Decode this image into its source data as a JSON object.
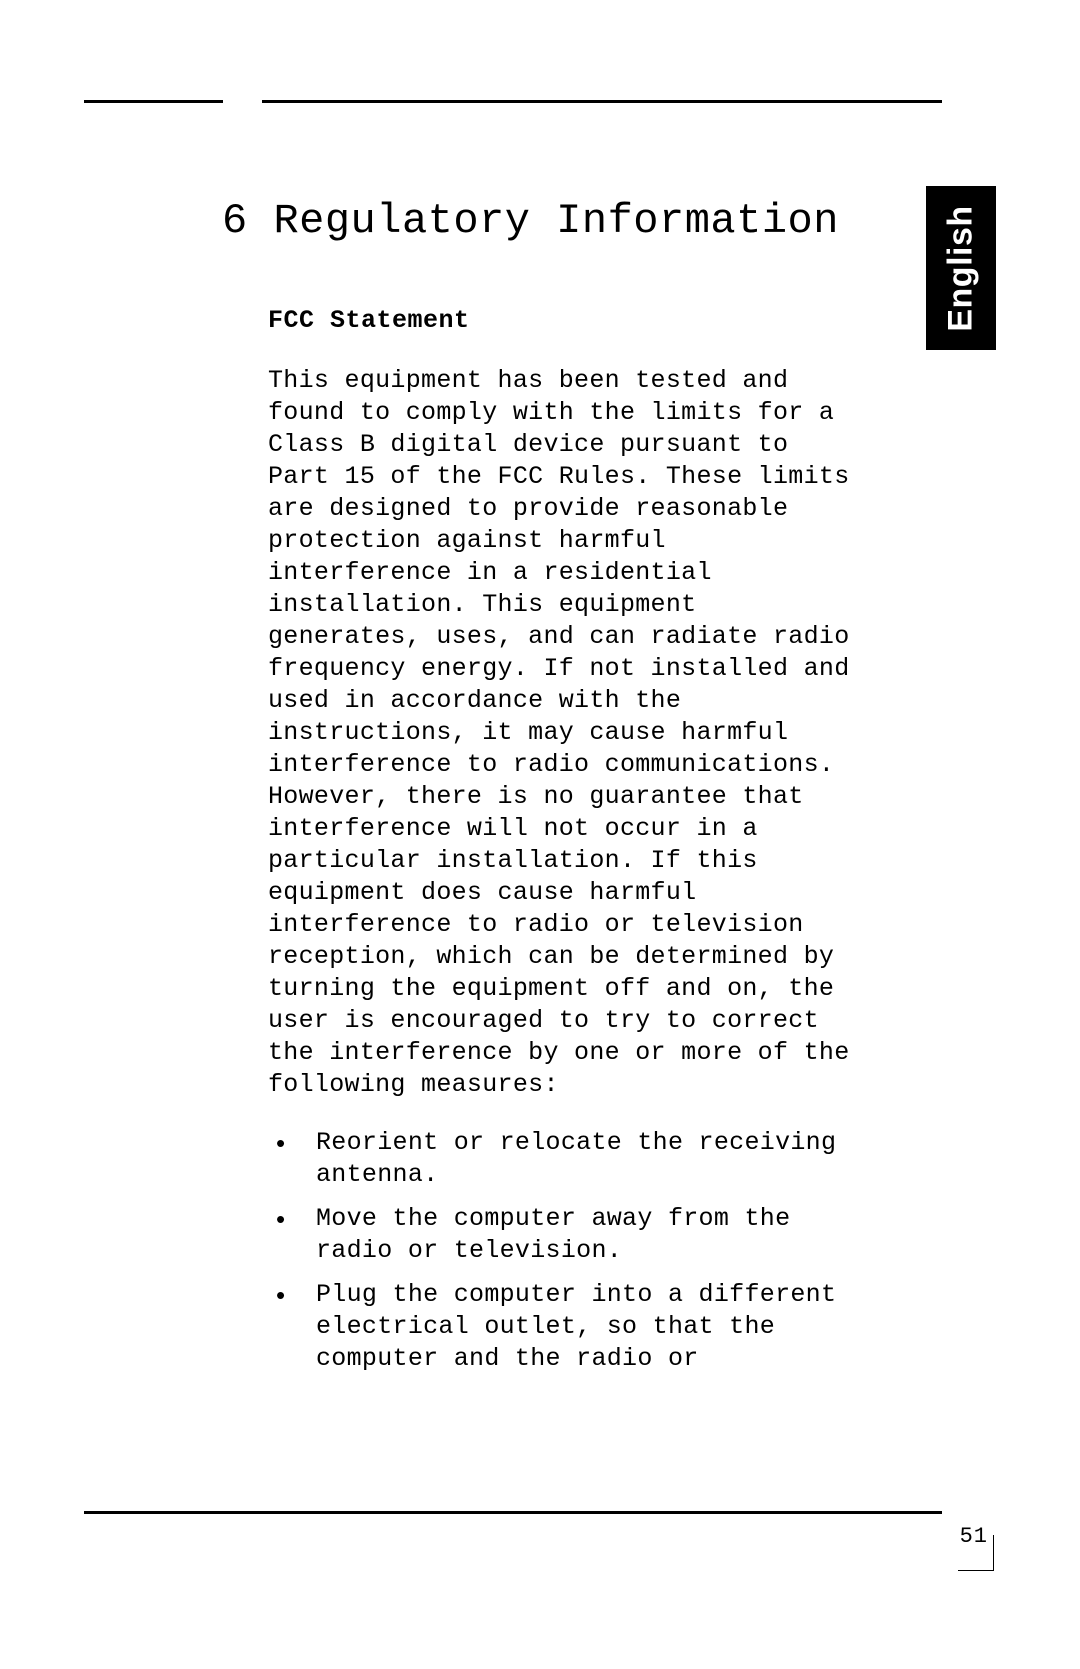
{
  "page": {
    "language_tab": "English",
    "page_number": "51"
  },
  "chapter": {
    "number": "6",
    "title": "Regulatory Information"
  },
  "section": {
    "heading": "FCC Statement",
    "paragraph": "This equipment has been tested and found to comply with the limits for a Class B digital device pursuant to Part 15 of the FCC Rules. These limits are designed to provide reasonable protection against harmful interference in a residential installation. This equipment generates, uses, and can radiate radio frequency energy. If not installed and used in accordance with the instructions, it may cause harmful interference to radio communications. However, there is no guarantee that interference will not occur in a particular installation. If this equipment does cause harmful interference to radio or television reception, which can be determined by turning the equipment off and on, the user is encouraged to try to correct the interference by one or more of the following measures:",
    "bullets": [
      "Reorient or relocate the receiving antenna.",
      "Move the computer away from the radio or television.",
      "Plug the computer into a different electrical outlet, so that the computer and the radio or"
    ]
  },
  "style": {
    "font": "Courier",
    "body_fontsize_pt": 25,
    "title_fontsize_pt": 42,
    "tab_bg": "#000000",
    "tab_fg": "#ffffff",
    "page_bg": "#ffffff",
    "text_color": "#000000"
  }
}
